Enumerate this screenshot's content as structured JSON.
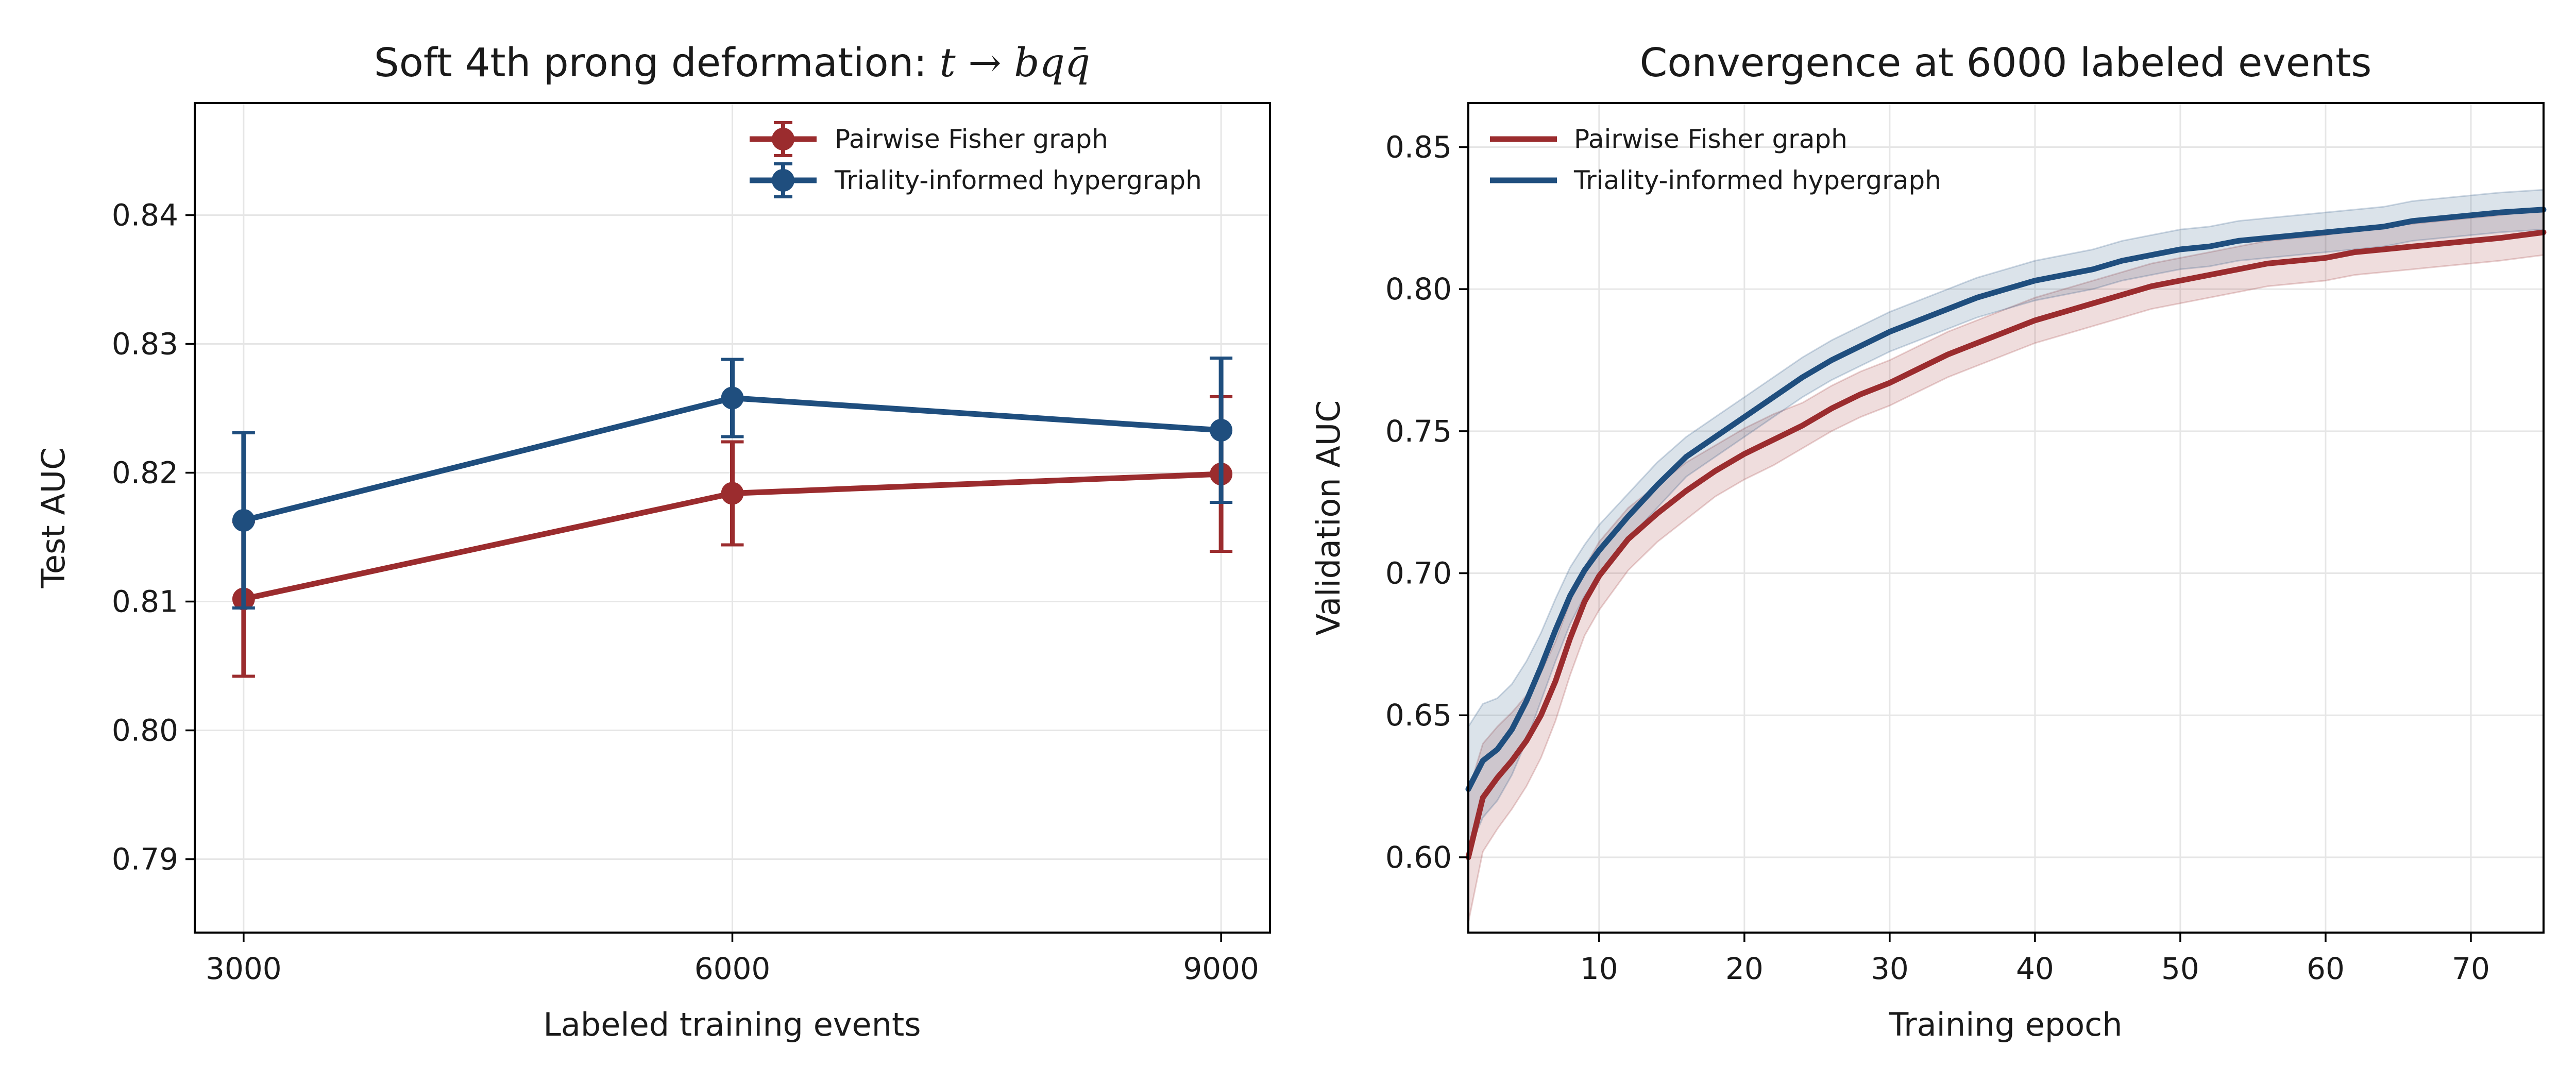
{
  "colors": {
    "pairwise": "#9b2c2e",
    "triality": "#1f4e7e"
  },
  "chart_data": [
    {
      "type": "line",
      "title": "Soft 4th prong deformation: ",
      "title_math": "t → bqq̄",
      "xlabel": "Labeled training events",
      "ylabel": "Test AUC",
      "x": [
        3000,
        6000,
        9000
      ],
      "xlim": [
        2700,
        9300
      ],
      "ylim": [
        0.7843,
        0.8487
      ],
      "xticks": [
        3000,
        6000,
        9000
      ],
      "yticks": [
        0.79,
        0.8,
        0.81,
        0.82,
        0.83,
        0.84
      ],
      "grid": true,
      "legend": "top-right",
      "error_bars": true,
      "series": [
        {
          "name": "Pairwise Fisher graph",
          "color": "#9b2c2e",
          "values": [
            0.8102,
            0.8184,
            0.8199
          ],
          "err": [
            0.006,
            0.004,
            0.006
          ]
        },
        {
          "name": "Triality-informed hypergraph",
          "color": "#1f4e7e",
          "values": [
            0.8163,
            0.8258,
            0.8233
          ],
          "err": [
            0.0068,
            0.003,
            0.0056
          ]
        }
      ]
    },
    {
      "type": "line",
      "title": "Convergence at 6000 labeled events",
      "xlabel": "Training epoch",
      "ylabel": "Validation AUC",
      "xlim": [
        1,
        75
      ],
      "ylim": [
        0.5735,
        0.8655
      ],
      "xticks": [
        10,
        20,
        30,
        40,
        50,
        60,
        70
      ],
      "yticks": [
        0.6,
        0.65,
        0.7,
        0.75,
        0.8,
        0.85
      ],
      "grid": true,
      "legend": "top-left",
      "bands": true,
      "x": [
        1,
        2,
        3,
        4,
        5,
        6,
        7,
        8,
        9,
        10,
        12,
        14,
        16,
        18,
        20,
        22,
        24,
        26,
        28,
        30,
        32,
        34,
        36,
        38,
        40,
        42,
        44,
        46,
        48,
        50,
        52,
        54,
        56,
        58,
        60,
        62,
        64,
        66,
        68,
        70,
        72,
        75
      ],
      "series": [
        {
          "name": "Pairwise Fisher graph",
          "color": "#9b2c2e",
          "values": [
            0.6,
            0.621,
            0.628,
            0.634,
            0.641,
            0.65,
            0.662,
            0.677,
            0.69,
            0.699,
            0.712,
            0.721,
            0.729,
            0.736,
            0.742,
            0.747,
            0.752,
            0.758,
            0.763,
            0.767,
            0.772,
            0.777,
            0.781,
            0.785,
            0.789,
            0.792,
            0.795,
            0.798,
            0.801,
            0.803,
            0.805,
            0.807,
            0.809,
            0.81,
            0.811,
            0.813,
            0.814,
            0.815,
            0.816,
            0.817,
            0.818,
            0.82
          ],
          "band": [
            0.023,
            0.019,
            0.018,
            0.017,
            0.016,
            0.015,
            0.014,
            0.013,
            0.012,
            0.012,
            0.011,
            0.01,
            0.01,
            0.009,
            0.009,
            0.009,
            0.008,
            0.008,
            0.008,
            0.008,
            0.008,
            0.008,
            0.008,
            0.008,
            0.008,
            0.008,
            0.008,
            0.008,
            0.008,
            0.008,
            0.008,
            0.008,
            0.008,
            0.008,
            0.008,
            0.008,
            0.008,
            0.008,
            0.008,
            0.008,
            0.008,
            0.008
          ]
        },
        {
          "name": "Triality-informed hypergraph",
          "color": "#1f4e7e",
          "values": [
            0.624,
            0.634,
            0.638,
            0.645,
            0.655,
            0.667,
            0.68,
            0.692,
            0.701,
            0.708,
            0.72,
            0.731,
            0.741,
            0.748,
            0.755,
            0.762,
            0.769,
            0.775,
            0.78,
            0.785,
            0.789,
            0.793,
            0.797,
            0.8,
            0.803,
            0.805,
            0.807,
            0.81,
            0.812,
            0.814,
            0.815,
            0.817,
            0.818,
            0.819,
            0.82,
            0.821,
            0.822,
            0.824,
            0.825,
            0.826,
            0.827,
            0.828
          ],
          "band": [
            0.022,
            0.02,
            0.018,
            0.016,
            0.014,
            0.012,
            0.011,
            0.01,
            0.009,
            0.009,
            0.008,
            0.008,
            0.007,
            0.007,
            0.007,
            0.007,
            0.007,
            0.007,
            0.007,
            0.007,
            0.007,
            0.007,
            0.007,
            0.007,
            0.007,
            0.007,
            0.007,
            0.007,
            0.007,
            0.007,
            0.007,
            0.007,
            0.007,
            0.007,
            0.007,
            0.007,
            0.007,
            0.007,
            0.007,
            0.007,
            0.007,
            0.007
          ]
        }
      ]
    }
  ]
}
